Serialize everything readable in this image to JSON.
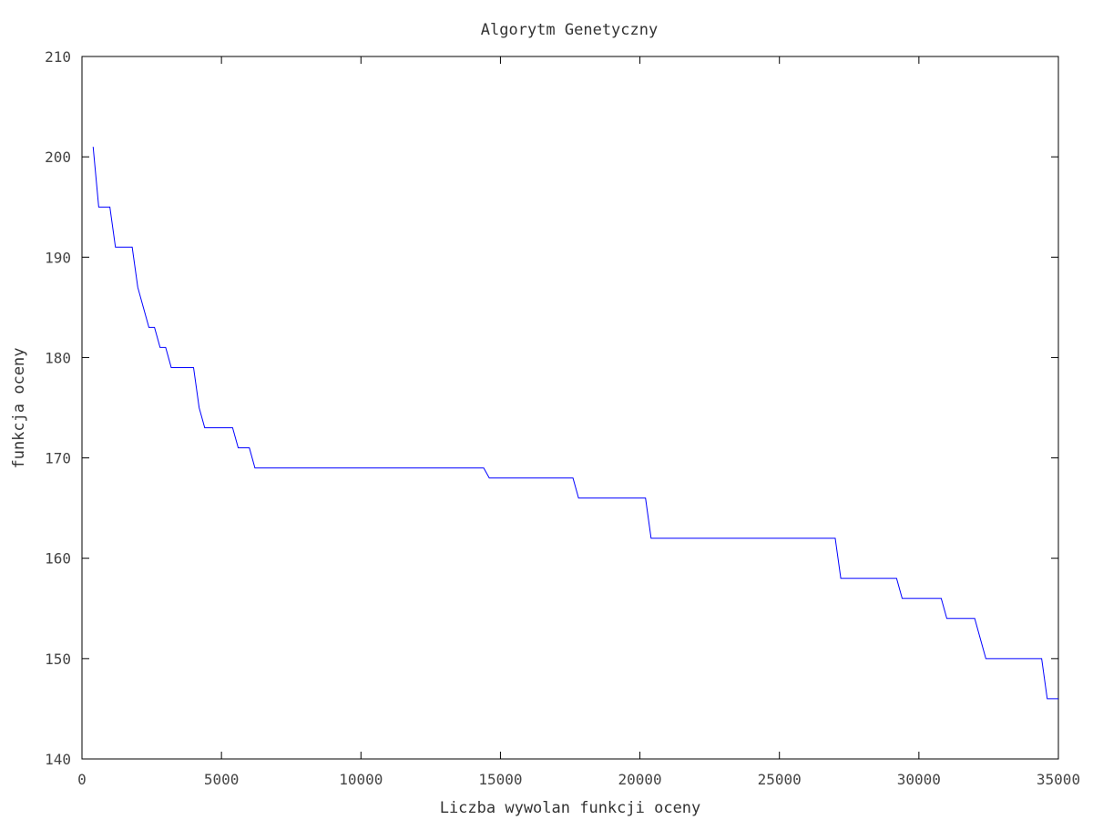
{
  "chart_data": {
    "type": "line",
    "title": "Algorytm Genetyczny",
    "xlabel": "Liczba wywolan funkcji oceny",
    "ylabel": "funkcja oceny",
    "xlim": [
      0,
      35000
    ],
    "ylim": [
      140,
      210
    ],
    "xticks": [
      "0",
      "5000",
      "10000",
      "15000",
      "20000",
      "25000",
      "30000",
      "35000"
    ],
    "yticks": [
      "140",
      "150",
      "160",
      "170",
      "180",
      "190",
      "200",
      "210"
    ],
    "grid": false,
    "legend": "none",
    "line_color": "#0000ff",
    "series": [
      {
        "x": [
          400,
          600,
          1000,
          1200,
          1800,
          2000,
          2200,
          2400,
          2600,
          2800,
          3000,
          3200,
          4000,
          4200,
          4400,
          5400,
          5600,
          6000,
          6200,
          14400,
          14600,
          17600,
          17800,
          20200,
          20400,
          27000,
          27200,
          29200,
          29400,
          30800,
          31000,
          32000,
          32400,
          34400,
          34600,
          35000
        ],
        "y": [
          201,
          195,
          195,
          191,
          191,
          187,
          185,
          183,
          183,
          181,
          181,
          179,
          179,
          175,
          173,
          173,
          171,
          171,
          169,
          169,
          168,
          168,
          166,
          166,
          162,
          162,
          158,
          158,
          156,
          156,
          154,
          154,
          150,
          150,
          146,
          146
        ]
      }
    ]
  }
}
